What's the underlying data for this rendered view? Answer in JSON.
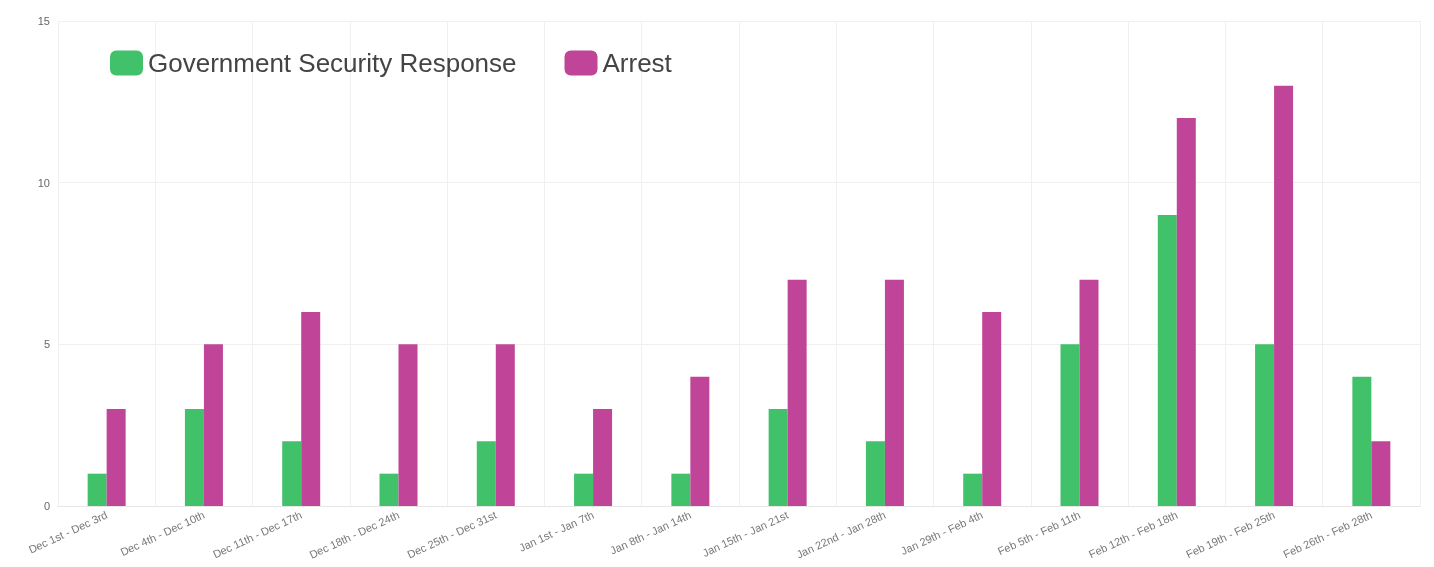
{
  "chart_data": {
    "type": "bar",
    "categories": [
      "Dec 1st - Dec 3rd",
      "Dec 4th - Dec 10th",
      "Dec 11th - Dec 17th",
      "Dec 18th - Dec 24th",
      "Dec 25th - Dec 31st",
      "Jan 1st - Jan 7th",
      "Jan 8th - Jan 14th",
      "Jan 15th - Jan 21st",
      "Jan 22nd - Jan 28th",
      "Jan 29th - Feb 4th",
      "Feb 5th - Feb 11th",
      "Feb 12th - Feb 18th",
      "Feb 19th - Feb 25th",
      "Feb 26th - Feb 28th"
    ],
    "series": [
      {
        "name": "Government Security Response",
        "color": "#42c16b",
        "values": [
          1,
          3,
          2,
          1,
          2,
          1,
          1,
          3,
          2,
          1,
          5,
          9,
          5,
          4
        ]
      },
      {
        "name": "Arrest",
        "color": "#c04497",
        "values": [
          3,
          5,
          6,
          5,
          5,
          3,
          4,
          7,
          7,
          6,
          7,
          12,
          13,
          2
        ]
      }
    ],
    "ylim": [
      0,
      15
    ],
    "yticks": [
      0,
      5,
      10,
      15
    ],
    "grid": true,
    "legend": "top left"
  }
}
